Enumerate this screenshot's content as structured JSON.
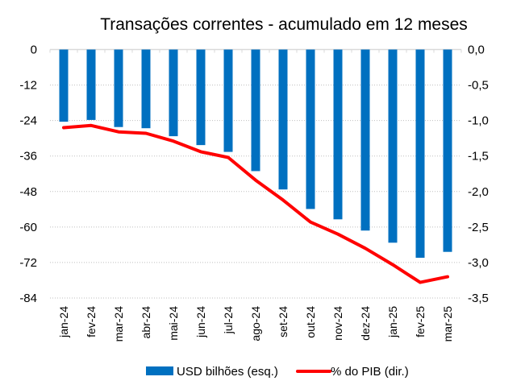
{
  "chart_data": {
    "type": "bar+line",
    "title": "Transações correntes - acumulado em 12 meses",
    "categories": [
      "jan-24",
      "fev-24",
      "mar-24",
      "abr-24",
      "mai-24",
      "jun-24",
      "jul-24",
      "ago-24",
      "set-24",
      "out-24",
      "nov-24",
      "dez-24",
      "jan-25",
      "fev-25",
      "mar-25"
    ],
    "series": [
      {
        "name": "USD bilhões (esq.)",
        "type": "bar",
        "axis": "left",
        "color": "#0070C0",
        "values": [
          -24.4,
          -23.8,
          -26.2,
          -26.6,
          -29.3,
          -32.3,
          -34.6,
          -41.1,
          -47.3,
          -53.9,
          -57.4,
          -61.2,
          -65.3,
          -70.4,
          -68.4
        ]
      },
      {
        "name": "% do PIB (dir.)",
        "type": "line",
        "axis": "right",
        "color": "#FF0000",
        "values": [
          -1.1,
          -1.07,
          -1.16,
          -1.18,
          -1.29,
          -1.44,
          -1.52,
          -1.84,
          -2.12,
          -2.43,
          -2.6,
          -2.8,
          -3.03,
          -3.28,
          -3.2
        ]
      }
    ],
    "left_axis": {
      "ylim": [
        -84,
        0
      ],
      "ticks": [
        0,
        -12,
        -24,
        -36,
        -48,
        -60,
        -72,
        -84
      ],
      "tick_labels": [
        "0",
        "-12",
        "-24",
        "-36",
        "-48",
        "-60",
        "-72",
        "-84"
      ]
    },
    "right_axis": {
      "ylim": [
        -3.5,
        0
      ],
      "ticks": [
        0,
        -0.5,
        -1.0,
        -1.5,
        -2.0,
        -2.5,
        -3.0,
        -3.5
      ],
      "tick_labels": [
        "0,0",
        "-0,5",
        "-1,0",
        "-1,5",
        "-2,0",
        "-2,5",
        "-3,0",
        "-3,5"
      ]
    },
    "grid": true,
    "legend_position": "bottom",
    "xlabel": "",
    "ylabel": ""
  }
}
